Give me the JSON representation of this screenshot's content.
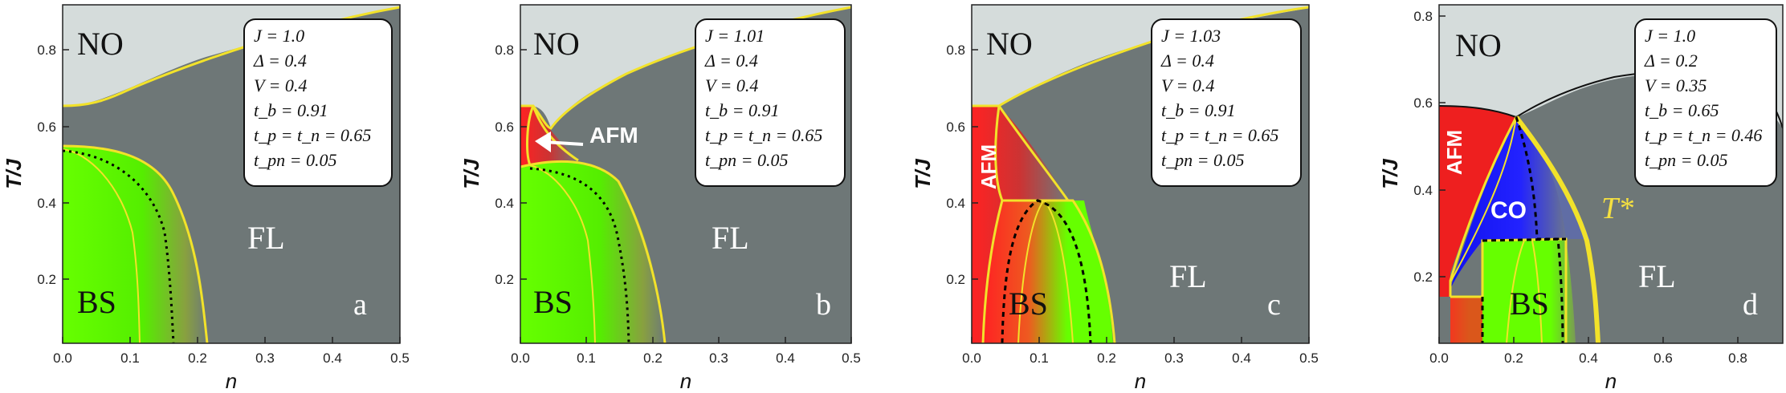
{
  "chart_data": [
    {
      "type": "area",
      "panel_label": "a",
      "xlabel": "n",
      "ylabel": "T/J",
      "xlim": [
        0,
        0.5
      ],
      "ylim": [
        0.03,
        0.91
      ],
      "xticks": [
        "0.0",
        "0.1",
        "0.2",
        "0.3",
        "0.4",
        "0.5"
      ],
      "yticks": [
        "0.2",
        "0.4",
        "0.6",
        "0.8"
      ],
      "params": [
        "J = 1.0",
        "Δ = 0.4",
        "V = 0.4",
        "t_b = 0.91",
        "t_p = t_n = 0.65",
        "t_pn = 0.05"
      ],
      "phase_labels": [
        "NO",
        "BS",
        "FL"
      ],
      "boundaries": [
        {
          "name": "NO",
          "x": [
            0,
            0.02,
            0.06,
            0.1,
            0.2,
            0.3,
            0.4,
            0.5
          ],
          "y": [
            0.65,
            0.655,
            0.68,
            0.71,
            0.76,
            0.8,
            0.85,
            0.9
          ]
        },
        {
          "name": "BS outer",
          "x": [
            0,
            0.05,
            0.1,
            0.15,
            0.18,
            0.2,
            0.21,
            0.215
          ],
          "y": [
            0.55,
            0.545,
            0.52,
            0.47,
            0.4,
            0.3,
            0.18,
            0.04
          ]
        },
        {
          "name": "BS inner",
          "x": [
            0,
            0.04,
            0.08,
            0.1,
            0.105
          ],
          "y": [
            0.55,
            0.52,
            0.42,
            0.25,
            0.04
          ]
        },
        {
          "name": "dotted",
          "x": [
            0,
            0.06,
            0.11,
            0.14,
            0.155,
            0.16
          ],
          "y": [
            0.55,
            0.53,
            0.46,
            0.35,
            0.2,
            0.04
          ]
        }
      ]
    },
    {
      "type": "area",
      "panel_label": "b",
      "xlabel": "n",
      "ylabel": "T/J",
      "xlim": [
        0,
        0.5
      ],
      "ylim": [
        0.03,
        0.91
      ],
      "xticks": [
        "0.0",
        "0.1",
        "0.2",
        "0.3",
        "0.4",
        "0.5"
      ],
      "yticks": [
        "0.2",
        "0.4",
        "0.6",
        "0.8"
      ],
      "params": [
        "J = 1.01",
        "Δ = 0.4",
        "V = 0.4",
        "t_b = 0.91",
        "t_p = t_n = 0.65",
        "t_pn = 0.05"
      ],
      "phase_labels": [
        "NO",
        "AFM",
        "BS",
        "FL"
      ],
      "boundaries": [
        {
          "name": "NO",
          "x": [
            0,
            0.02,
            0.04,
            0.08,
            0.15,
            0.25,
            0.35,
            0.5
          ],
          "y": [
            0.65,
            0.652,
            0.62,
            0.67,
            0.74,
            0.8,
            0.84,
            0.9
          ]
        },
        {
          "name": "BS outer",
          "x": [
            0,
            0.04,
            0.1,
            0.15,
            0.18,
            0.2,
            0.21,
            0.215
          ],
          "y": [
            0.49,
            0.51,
            0.5,
            0.46,
            0.4,
            0.3,
            0.18,
            0.04
          ]
        },
        {
          "name": "BS inner",
          "x": [
            0,
            0.04,
            0.08,
            0.1,
            0.105
          ],
          "y": [
            0.49,
            0.48,
            0.4,
            0.25,
            0.04
          ]
        },
        {
          "name": "dotted",
          "x": [
            0,
            0.06,
            0.11,
            0.14,
            0.155,
            0.16
          ],
          "y": [
            0.49,
            0.48,
            0.44,
            0.35,
            0.2,
            0.04
          ]
        }
      ]
    },
    {
      "type": "area",
      "panel_label": "c",
      "xlabel": "n",
      "ylabel": "T/J",
      "xlim": [
        0,
        0.5
      ],
      "ylim": [
        0.03,
        0.91
      ],
      "xticks": [
        "0.0",
        "0.1",
        "0.2",
        "0.3",
        "0.4",
        "0.5"
      ],
      "yticks": [
        "0.2",
        "0.4",
        "0.6",
        "0.8"
      ],
      "params": [
        "J = 1.03",
        "Δ = 0.4",
        "V = 0.4",
        "t_b = 0.91",
        "t_p = t_n = 0.65",
        "t_pn = 0.05"
      ],
      "phase_labels": [
        "NO",
        "AFM",
        "BS",
        "FL"
      ],
      "boundaries": [
        {
          "name": "NO",
          "x": [
            0,
            0.025,
            0.04,
            0.1,
            0.2,
            0.3,
            0.4,
            0.5
          ],
          "y": [
            0.65,
            0.65,
            0.66,
            0.71,
            0.77,
            0.82,
            0.86,
            0.9
          ]
        },
        {
          "name": "AFM",
          "x": [
            0.03,
            0.06,
            0.09,
            0.11,
            0.115
          ],
          "y": [
            0.65,
            0.6,
            0.5,
            0.43,
            0.4
          ]
        },
        {
          "name": "BS outer",
          "x": [
            0.11,
            0.16,
            0.19,
            0.21,
            0.215
          ],
          "y": [
            0.4,
            0.38,
            0.32,
            0.2,
            0.04
          ]
        },
        {
          "name": "BS inner",
          "x": [
            0.02,
            0.04,
            0.06,
            0.075,
            0.09,
            0.105,
            0.115
          ],
          "y": [
            0.04,
            0.25,
            0.38,
            0.4,
            0.38,
            0.25,
            0.04
          ]
        }
      ]
    },
    {
      "type": "area",
      "panel_label": "d",
      "xlabel": "n",
      "ylabel": "T/J",
      "xlim": [
        0,
        0.92
      ],
      "ylim": [
        0.03,
        0.81
      ],
      "xticks": [
        "0.0",
        "0.2",
        "0.4",
        "0.6",
        "0.8"
      ],
      "yticks": [
        "0.2",
        "0.4",
        "0.6",
        "0.8"
      ],
      "params": [
        "J = 1.0",
        "Δ = 0.2",
        "V = 0.35",
        "t_b = 0.65",
        "t_p = t_n = 0.46",
        "t_pn = 0.05"
      ],
      "phase_labels": [
        "NO",
        "AFM",
        "CO",
        "T*",
        "BS",
        "FL"
      ],
      "boundaries": [
        {
          "name": "NO",
          "x": [
            0,
            0.1,
            0.2,
            0.3,
            0.45,
            0.6,
            0.75,
            0.88,
            0.92
          ],
          "y": [
            0.58,
            0.58,
            0.55,
            0.6,
            0.65,
            0.67,
            0.66,
            0.6,
            0.53
          ]
        },
        {
          "name": "T*",
          "x": [
            0.21,
            0.28,
            0.34,
            0.38,
            0.4,
            0.41
          ],
          "y": [
            0.55,
            0.48,
            0.36,
            0.24,
            0.12,
            0.04
          ]
        },
        {
          "name": "BS",
          "x": [
            0.14,
            0.2,
            0.26,
            0.32,
            0.33
          ],
          "y": [
            0.28,
            0.29,
            0.29,
            0.28,
            0.04
          ]
        }
      ]
    }
  ]
}
